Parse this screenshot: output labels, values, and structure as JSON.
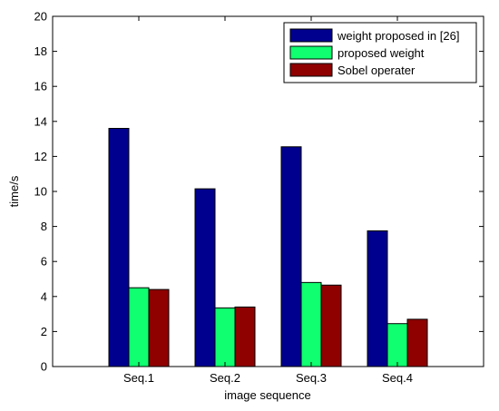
{
  "chart_data": {
    "type": "bar",
    "title": "",
    "xlabel": "image sequence",
    "ylabel": "time/s",
    "ylim": [
      0,
      20
    ],
    "yticks": [
      0,
      2,
      4,
      6,
      8,
      10,
      12,
      14,
      16,
      18,
      20
    ],
    "categories": [
      "Seq.1",
      "Seq.2",
      "Seq.3",
      "Seq.4"
    ],
    "grid": false,
    "legend_position": "top-right",
    "series": [
      {
        "name": "weight proposed in [26]",
        "color": "#00008f",
        "values": [
          13.6,
          10.15,
          12.55,
          7.75
        ]
      },
      {
        "name": "proposed weight",
        "color": "#0fff70",
        "values": [
          4.5,
          3.35,
          4.8,
          2.45
        ]
      },
      {
        "name": "Sobel operater",
        "color": "#8f0000",
        "values": [
          4.4,
          3.4,
          4.65,
          2.7
        ]
      }
    ]
  }
}
